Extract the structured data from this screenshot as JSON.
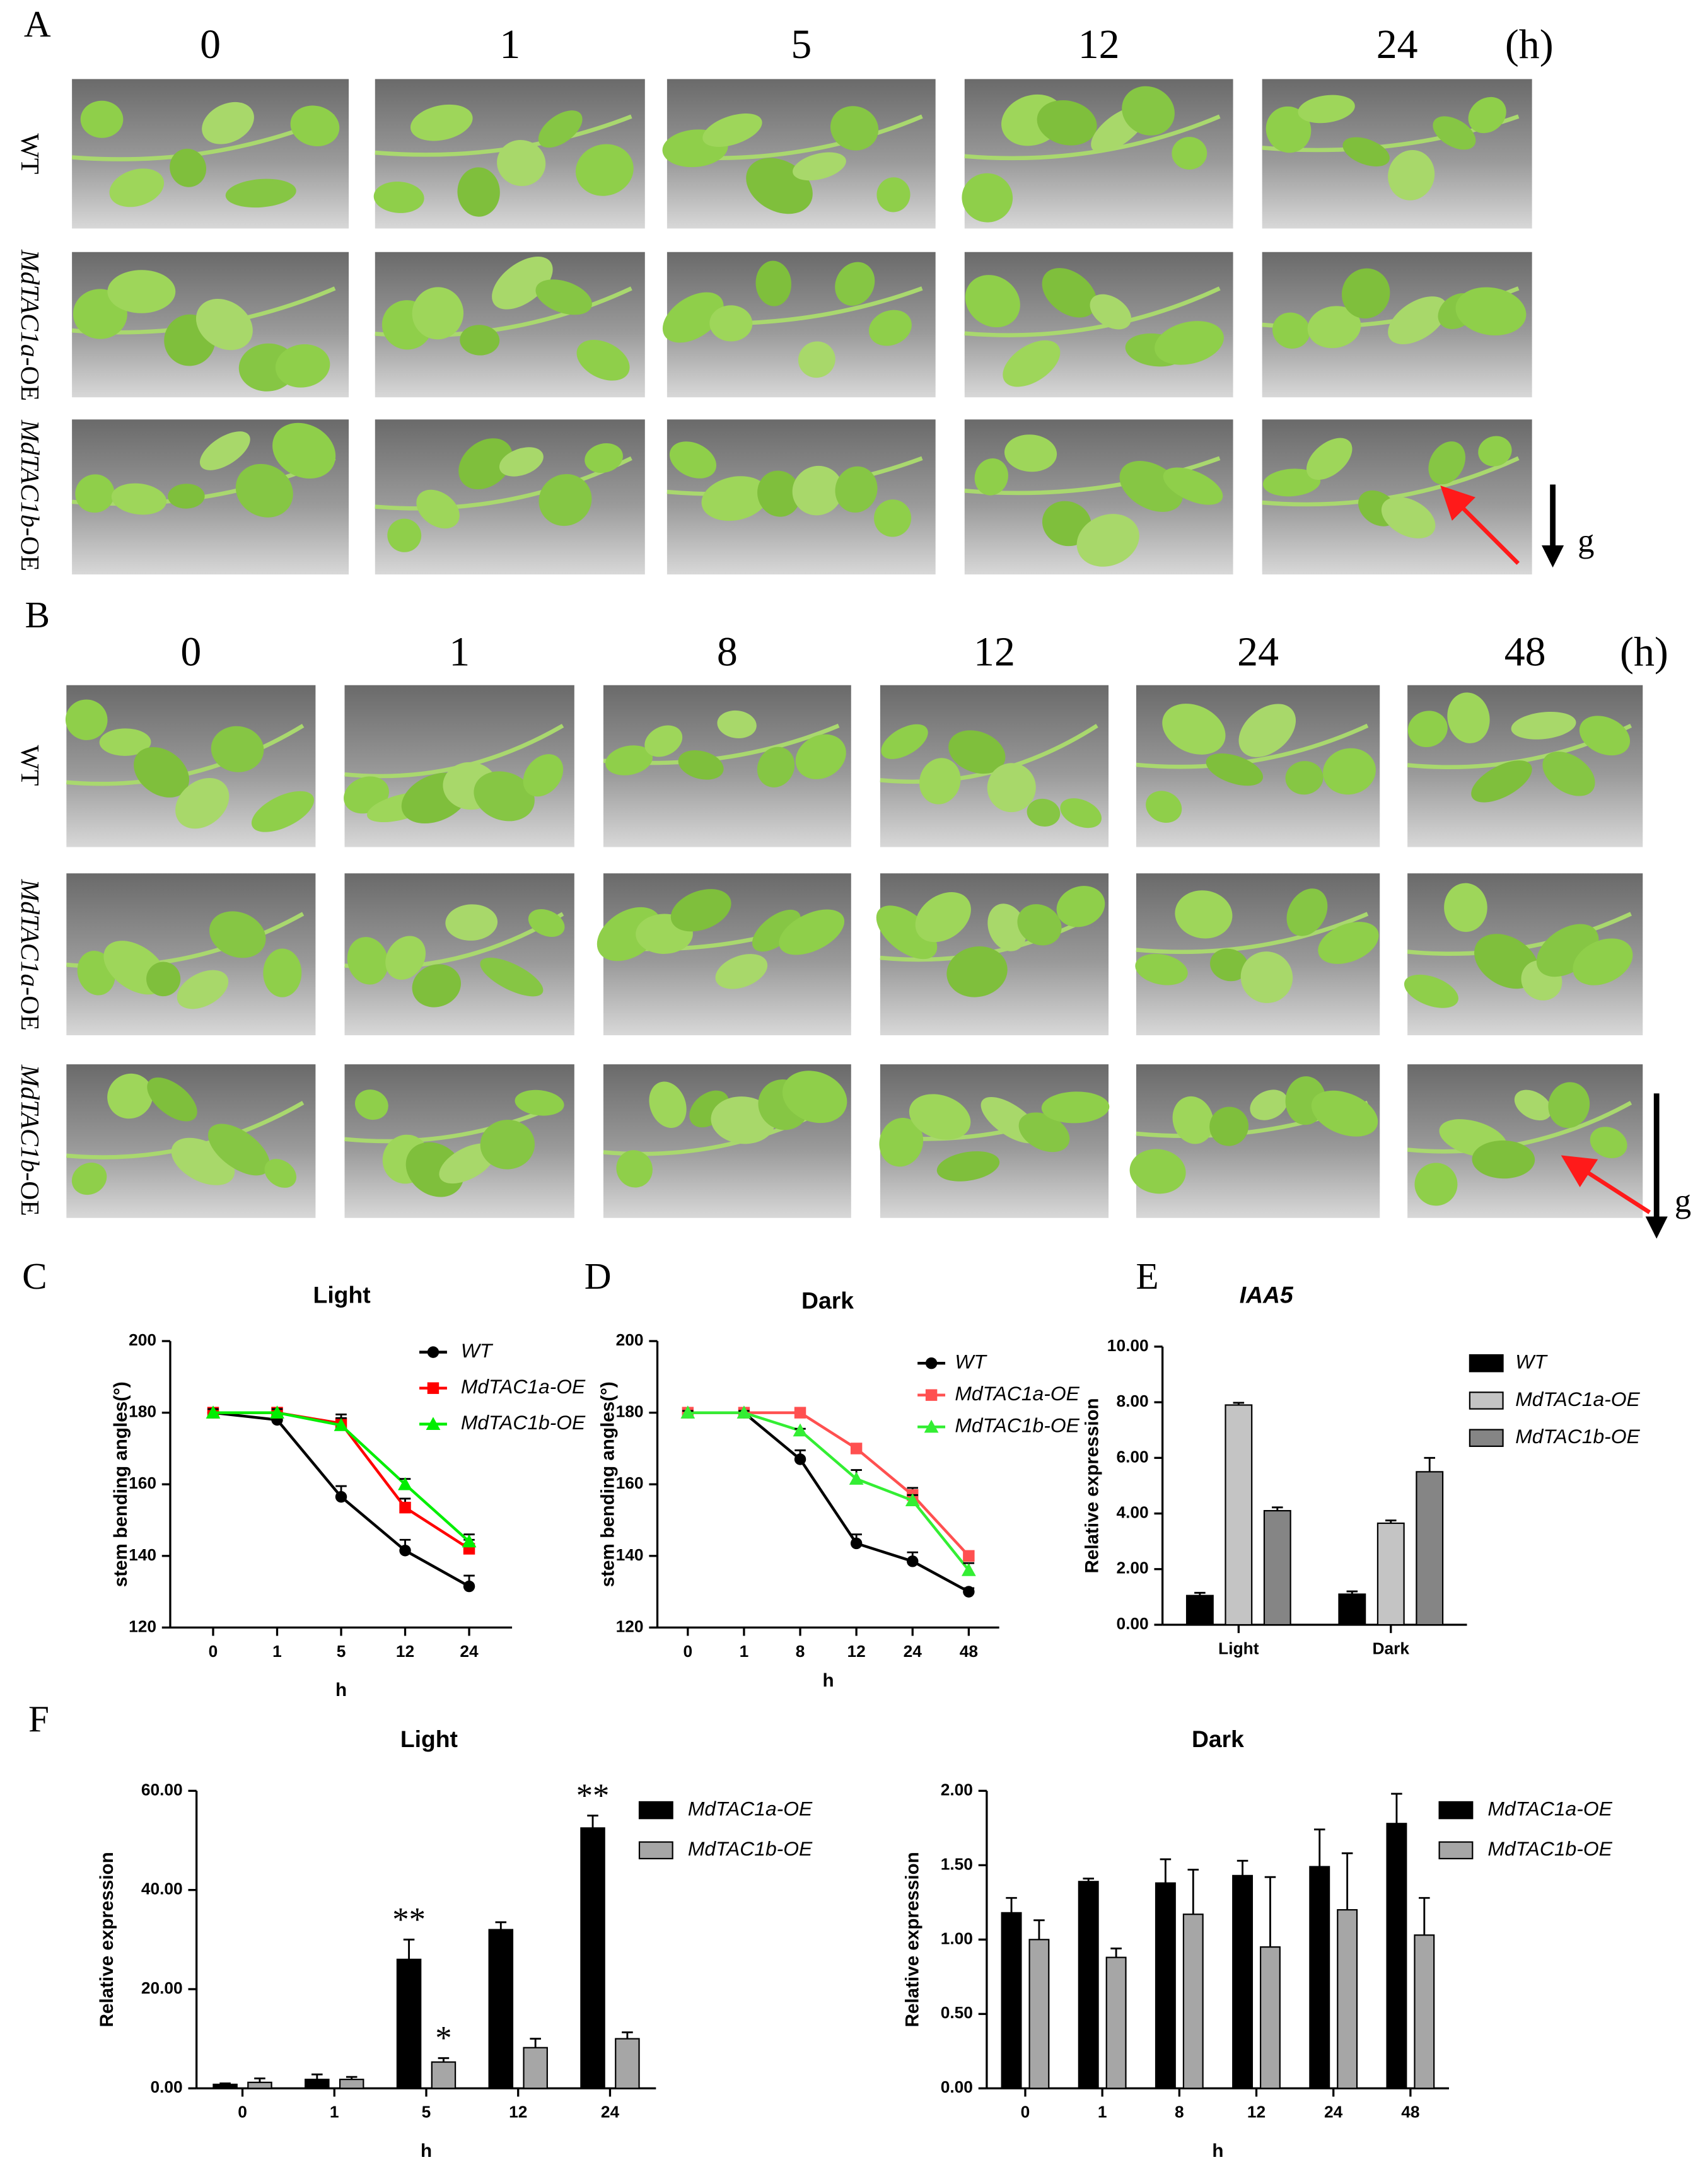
{
  "panels": [
    {
      "label": "A",
      "times": [
        "0",
        "1",
        "5",
        "12",
        "24"
      ],
      "unit": "(h)",
      "rows": [
        {
          "name": "WT"
        },
        {
          "name": "MdTAC1a",
          "suffix": "-OE"
        },
        {
          "name": "MdTAC1b",
          "suffix": "-OE"
        }
      ],
      "gravity": "g"
    },
    {
      "label": "B",
      "times": [
        "0",
        "1",
        "8",
        "12",
        "24",
        "48"
      ],
      "unit": "(h)",
      "rows": [
        {
          "name": "WT"
        },
        {
          "name": "MdTAC1a",
          "suffix": "-OE"
        },
        {
          "name": "MdTAC1b",
          "suffix": "-OE"
        }
      ],
      "gravity": "g"
    }
  ],
  "chart_data": [
    {
      "type": "line",
      "label": "C",
      "title": "Light",
      "x_label": "h",
      "y_label": "stem bending angles(°)",
      "categories": [
        "0",
        "1",
        "5",
        "12",
        "24"
      ],
      "ylim": [
        120,
        200
      ],
      "yticks": [
        120,
        140,
        160,
        180,
        200
      ],
      "series": [
        {
          "name": "WT",
          "color": "#000000",
          "marker": "circle",
          "values": [
            180,
            178,
            156.5,
            141.5,
            131.5
          ],
          "errors": [
            1,
            2,
            3,
            3,
            3
          ]
        },
        {
          "name": "MdTAC1a-OE",
          "color": "#ff0000",
          "marker": "square",
          "values": [
            180,
            180,
            177,
            153.5,
            142
          ],
          "errors": [
            1,
            1,
            2.5,
            2.5,
            2.5
          ]
        },
        {
          "name": "MdTAC1b-OE",
          "color": "#00ee00",
          "marker": "triangle",
          "values": [
            180,
            180,
            176.5,
            160,
            144
          ],
          "errors": [
            1,
            1,
            2,
            1.5,
            2
          ]
        }
      ]
    },
    {
      "type": "line",
      "label": "D",
      "title": "Dark",
      "x_label": "h",
      "y_label": "stem bending angles(°)",
      "categories": [
        "0",
        "1",
        "8",
        "12",
        "24",
        "48"
      ],
      "ylim": [
        120,
        200
      ],
      "yticks": [
        120,
        140,
        160,
        180,
        200
      ],
      "series": [
        {
          "name": "WT",
          "color": "#000000",
          "marker": "circle",
          "values": [
            180,
            180,
            167,
            143.5,
            138.5,
            130
          ],
          "errors": [
            0.5,
            0.5,
            2.5,
            2.5,
            2.5,
            1
          ]
        },
        {
          "name": "MdTAC1a-OE",
          "color": "#ff5050",
          "marker": "square",
          "values": [
            180,
            180,
            180,
            170,
            157,
            140
          ],
          "errors": [
            0.5,
            0.5,
            0.5,
            1,
            2,
            1
          ]
        },
        {
          "name": "MdTAC1b-OE",
          "color": "#33ee33",
          "marker": "triangle",
          "values": [
            180,
            180,
            175,
            161.5,
            155.5,
            136
          ],
          "errors": [
            0.5,
            0.5,
            0.5,
            2.5,
            1.5,
            2
          ]
        }
      ]
    },
    {
      "type": "bar",
      "label": "E",
      "title": "IAA5",
      "y_label": "Relative expression",
      "categories": [
        "Light",
        "Dark"
      ],
      "ylim": [
        0,
        10
      ],
      "yticks": [
        {
          "value": 0,
          "label": "0.00"
        },
        {
          "value": 2,
          "label": "2.00"
        },
        {
          "value": 4,
          "label": "4.00"
        },
        {
          "value": 6,
          "label": "6.00"
        },
        {
          "value": 8,
          "label": "8.00"
        },
        {
          "value": 10,
          "label": "10.00"
        }
      ],
      "series": [
        {
          "name": "WT",
          "color": "#000000",
          "values": [
            1.05,
            1.1
          ],
          "errors": [
            0.1,
            0.1
          ]
        },
        {
          "name": "MdTAC1a-OE",
          "color": "#c4c4c4",
          "values": [
            7.9,
            3.65
          ],
          "errors": [
            0.08,
            0.1
          ]
        },
        {
          "name": "MdTAC1b-OE",
          "color": "#858585",
          "values": [
            4.1,
            5.5
          ],
          "errors": [
            0.12,
            0.5
          ]
        }
      ]
    },
    {
      "type": "bar",
      "label": "F",
      "title": "Light",
      "x_label": "h",
      "y_label": "Relative expression",
      "categories": [
        "0",
        "1",
        "5",
        "12",
        "24"
      ],
      "ylim": [
        0,
        60
      ],
      "yticks": [
        {
          "value": 0,
          "label": "0.00"
        },
        {
          "value": 20,
          "label": "20.00"
        },
        {
          "value": 40,
          "label": "40.00"
        },
        {
          "value": 60,
          "label": "60.00"
        }
      ],
      "series": [
        {
          "name": "MdTAC1a-OE",
          "color": "#000000",
          "values": [
            0.8,
            1.8,
            26,
            32,
            52.5
          ],
          "errors": [
            0.2,
            1,
            4,
            1.5,
            2.5
          ],
          "significance": [
            null,
            null,
            "**",
            null,
            "**"
          ]
        },
        {
          "name": "MdTAC1b-OE",
          "color": "#a6a6a6",
          "values": [
            1.2,
            1.8,
            5.3,
            8.2,
            10
          ],
          "errors": [
            0.8,
            0.5,
            0.8,
            1.8,
            1.3
          ],
          "significance": [
            null,
            null,
            "*",
            null,
            null
          ]
        }
      ]
    },
    {
      "type": "bar",
      "title": "Dark",
      "x_label": "h",
      "y_label": "Relative expression",
      "categories": [
        "0",
        "1",
        "8",
        "12",
        "24",
        "48"
      ],
      "ylim": [
        0,
        2
      ],
      "yticks": [
        {
          "value": 0,
          "label": "0.00"
        },
        {
          "value": 0.5,
          "label": "0.50"
        },
        {
          "value": 1,
          "label": "1.00"
        },
        {
          "value": 1.5,
          "label": "1.50"
        },
        {
          "value": 2,
          "label": "2.00"
        }
      ],
      "series": [
        {
          "name": "MdTAC1a-OE",
          "color": "#000000",
          "values": [
            1.18,
            1.39,
            1.38,
            1.43,
            1.49,
            1.78
          ],
          "errors": [
            0.1,
            0.02,
            0.16,
            0.1,
            0.25,
            0.2
          ]
        },
        {
          "name": "MdTAC1b-OE",
          "color": "#a6a6a6",
          "values": [
            1.0,
            0.88,
            1.17,
            0.95,
            1.2,
            1.03
          ],
          "errors": [
            0.13,
            0.06,
            0.3,
            0.47,
            0.38,
            0.25
          ]
        }
      ]
    }
  ]
}
